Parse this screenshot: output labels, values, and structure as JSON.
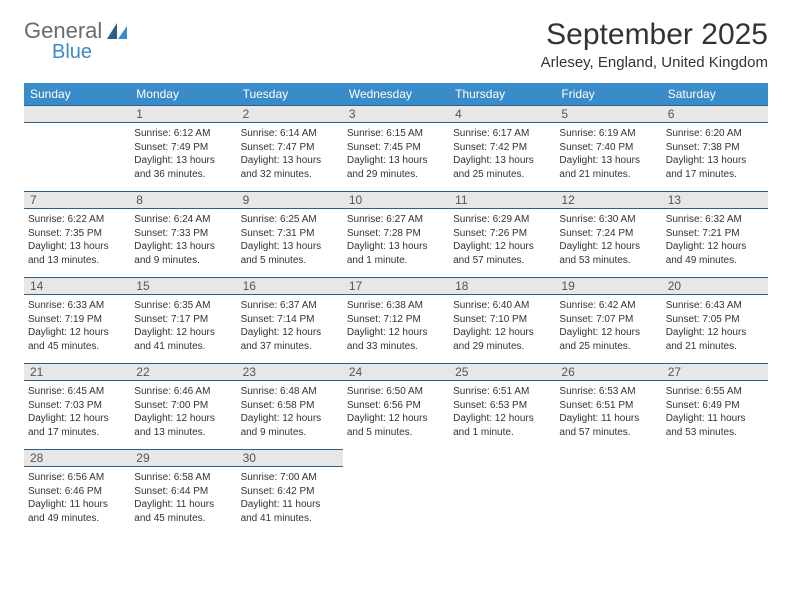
{
  "brand": {
    "top": "General",
    "bottom": "Blue"
  },
  "title": "September 2025",
  "location": "Arlesey, England, United Kingdom",
  "colors": {
    "header_bg": "#3a8bc9",
    "header_text": "#ffffff",
    "daynum_bg": "#e7e7e7",
    "border": "#2b5f8a",
    "body_text": "#333333",
    "logo_gray": "#6b6b6b",
    "logo_blue": "#3a8bc9"
  },
  "day_headers": [
    "Sunday",
    "Monday",
    "Tuesday",
    "Wednesday",
    "Thursday",
    "Friday",
    "Saturday"
  ],
  "weeks": [
    [
      null,
      {
        "n": "1",
        "sr": "Sunrise: 6:12 AM",
        "ss": "Sunset: 7:49 PM",
        "dl1": "Daylight: 13 hours",
        "dl2": "and 36 minutes."
      },
      {
        "n": "2",
        "sr": "Sunrise: 6:14 AM",
        "ss": "Sunset: 7:47 PM",
        "dl1": "Daylight: 13 hours",
        "dl2": "and 32 minutes."
      },
      {
        "n": "3",
        "sr": "Sunrise: 6:15 AM",
        "ss": "Sunset: 7:45 PM",
        "dl1": "Daylight: 13 hours",
        "dl2": "and 29 minutes."
      },
      {
        "n": "4",
        "sr": "Sunrise: 6:17 AM",
        "ss": "Sunset: 7:42 PM",
        "dl1": "Daylight: 13 hours",
        "dl2": "and 25 minutes."
      },
      {
        "n": "5",
        "sr": "Sunrise: 6:19 AM",
        "ss": "Sunset: 7:40 PM",
        "dl1": "Daylight: 13 hours",
        "dl2": "and 21 minutes."
      },
      {
        "n": "6",
        "sr": "Sunrise: 6:20 AM",
        "ss": "Sunset: 7:38 PM",
        "dl1": "Daylight: 13 hours",
        "dl2": "and 17 minutes."
      }
    ],
    [
      {
        "n": "7",
        "sr": "Sunrise: 6:22 AM",
        "ss": "Sunset: 7:35 PM",
        "dl1": "Daylight: 13 hours",
        "dl2": "and 13 minutes."
      },
      {
        "n": "8",
        "sr": "Sunrise: 6:24 AM",
        "ss": "Sunset: 7:33 PM",
        "dl1": "Daylight: 13 hours",
        "dl2": "and 9 minutes."
      },
      {
        "n": "9",
        "sr": "Sunrise: 6:25 AM",
        "ss": "Sunset: 7:31 PM",
        "dl1": "Daylight: 13 hours",
        "dl2": "and 5 minutes."
      },
      {
        "n": "10",
        "sr": "Sunrise: 6:27 AM",
        "ss": "Sunset: 7:28 PM",
        "dl1": "Daylight: 13 hours",
        "dl2": "and 1 minute."
      },
      {
        "n": "11",
        "sr": "Sunrise: 6:29 AM",
        "ss": "Sunset: 7:26 PM",
        "dl1": "Daylight: 12 hours",
        "dl2": "and 57 minutes."
      },
      {
        "n": "12",
        "sr": "Sunrise: 6:30 AM",
        "ss": "Sunset: 7:24 PM",
        "dl1": "Daylight: 12 hours",
        "dl2": "and 53 minutes."
      },
      {
        "n": "13",
        "sr": "Sunrise: 6:32 AM",
        "ss": "Sunset: 7:21 PM",
        "dl1": "Daylight: 12 hours",
        "dl2": "and 49 minutes."
      }
    ],
    [
      {
        "n": "14",
        "sr": "Sunrise: 6:33 AM",
        "ss": "Sunset: 7:19 PM",
        "dl1": "Daylight: 12 hours",
        "dl2": "and 45 minutes."
      },
      {
        "n": "15",
        "sr": "Sunrise: 6:35 AM",
        "ss": "Sunset: 7:17 PM",
        "dl1": "Daylight: 12 hours",
        "dl2": "and 41 minutes."
      },
      {
        "n": "16",
        "sr": "Sunrise: 6:37 AM",
        "ss": "Sunset: 7:14 PM",
        "dl1": "Daylight: 12 hours",
        "dl2": "and 37 minutes."
      },
      {
        "n": "17",
        "sr": "Sunrise: 6:38 AM",
        "ss": "Sunset: 7:12 PM",
        "dl1": "Daylight: 12 hours",
        "dl2": "and 33 minutes."
      },
      {
        "n": "18",
        "sr": "Sunrise: 6:40 AM",
        "ss": "Sunset: 7:10 PM",
        "dl1": "Daylight: 12 hours",
        "dl2": "and 29 minutes."
      },
      {
        "n": "19",
        "sr": "Sunrise: 6:42 AM",
        "ss": "Sunset: 7:07 PM",
        "dl1": "Daylight: 12 hours",
        "dl2": "and 25 minutes."
      },
      {
        "n": "20",
        "sr": "Sunrise: 6:43 AM",
        "ss": "Sunset: 7:05 PM",
        "dl1": "Daylight: 12 hours",
        "dl2": "and 21 minutes."
      }
    ],
    [
      {
        "n": "21",
        "sr": "Sunrise: 6:45 AM",
        "ss": "Sunset: 7:03 PM",
        "dl1": "Daylight: 12 hours",
        "dl2": "and 17 minutes."
      },
      {
        "n": "22",
        "sr": "Sunrise: 6:46 AM",
        "ss": "Sunset: 7:00 PM",
        "dl1": "Daylight: 12 hours",
        "dl2": "and 13 minutes."
      },
      {
        "n": "23",
        "sr": "Sunrise: 6:48 AM",
        "ss": "Sunset: 6:58 PM",
        "dl1": "Daylight: 12 hours",
        "dl2": "and 9 minutes."
      },
      {
        "n": "24",
        "sr": "Sunrise: 6:50 AM",
        "ss": "Sunset: 6:56 PM",
        "dl1": "Daylight: 12 hours",
        "dl2": "and 5 minutes."
      },
      {
        "n": "25",
        "sr": "Sunrise: 6:51 AM",
        "ss": "Sunset: 6:53 PM",
        "dl1": "Daylight: 12 hours",
        "dl2": "and 1 minute."
      },
      {
        "n": "26",
        "sr": "Sunrise: 6:53 AM",
        "ss": "Sunset: 6:51 PM",
        "dl1": "Daylight: 11 hours",
        "dl2": "and 57 minutes."
      },
      {
        "n": "27",
        "sr": "Sunrise: 6:55 AM",
        "ss": "Sunset: 6:49 PM",
        "dl1": "Daylight: 11 hours",
        "dl2": "and 53 minutes."
      }
    ],
    [
      {
        "n": "28",
        "sr": "Sunrise: 6:56 AM",
        "ss": "Sunset: 6:46 PM",
        "dl1": "Daylight: 11 hours",
        "dl2": "and 49 minutes."
      },
      {
        "n": "29",
        "sr": "Sunrise: 6:58 AM",
        "ss": "Sunset: 6:44 PM",
        "dl1": "Daylight: 11 hours",
        "dl2": "and 45 minutes."
      },
      {
        "n": "30",
        "sr": "Sunrise: 7:00 AM",
        "ss": "Sunset: 6:42 PM",
        "dl1": "Daylight: 11 hours",
        "dl2": "and 41 minutes."
      },
      null,
      null,
      null,
      null
    ]
  ]
}
